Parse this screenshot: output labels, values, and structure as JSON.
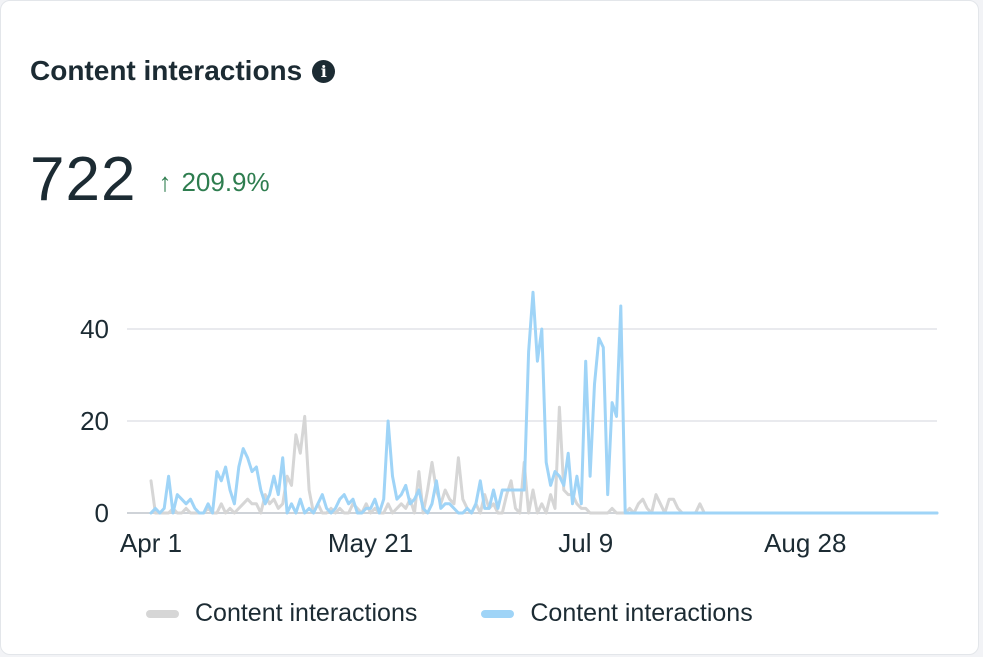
{
  "card": {
    "title": "Content interactions",
    "info_icon": "info-icon",
    "value": "722",
    "change": "209.9%",
    "change_direction": "up",
    "change_color": "#2e7d4f"
  },
  "chart_data": {
    "type": "line",
    "title": "",
    "xlabel": "",
    "ylabel": "",
    "x_start": "Apr 1",
    "x_ticks": [
      "Apr 1",
      "May 21",
      "Jul 9",
      "Aug 28"
    ],
    "x_tick_index": [
      0,
      50,
      99,
      149
    ],
    "x_count": 180,
    "ylim": [
      0,
      50
    ],
    "y_ticks": [
      0,
      20,
      40
    ],
    "grid": true,
    "legend_position": "bottom",
    "series": [
      {
        "name": "Content interactions",
        "color": "#d6d6d6",
        "values": [
          7,
          0,
          0,
          0,
          0,
          1,
          0,
          0,
          1,
          0,
          0,
          0,
          0,
          1,
          0,
          0,
          2,
          0,
          1,
          0,
          1,
          2,
          3,
          2,
          2,
          0,
          4,
          2,
          3,
          1,
          2,
          8,
          6,
          17,
          13,
          21,
          5,
          0,
          2,
          0,
          0,
          1,
          0,
          1,
          0,
          0,
          2,
          1,
          0,
          2,
          0,
          1,
          0,
          0,
          2,
          0,
          1,
          2,
          1,
          3,
          0,
          9,
          0,
          5,
          11,
          5,
          2,
          5,
          3,
          2,
          12,
          3,
          1,
          0,
          2,
          0,
          4,
          1,
          2,
          0,
          0,
          4,
          7,
          1,
          0,
          11,
          0,
          5,
          0,
          2,
          0,
          4,
          1,
          23,
          5,
          4,
          4,
          2,
          1,
          1,
          0,
          0,
          0,
          0,
          0,
          1,
          0,
          0,
          0,
          1,
          0,
          2,
          3,
          1,
          0,
          4,
          2,
          0,
          3,
          3,
          1,
          0,
          0,
          0,
          0,
          2,
          0,
          0,
          0,
          0,
          0,
          0,
          0,
          0,
          0,
          0,
          0,
          0,
          0,
          0,
          0,
          0,
          0,
          0,
          0,
          0,
          0,
          0,
          0,
          0,
          0,
          0,
          0,
          0,
          0,
          0,
          0,
          0,
          0,
          0,
          0,
          0,
          0,
          0,
          0,
          0,
          0,
          0,
          0,
          0,
          0,
          0,
          0,
          0,
          0,
          0,
          0,
          0,
          0,
          0
        ]
      },
      {
        "name": "Content interactions",
        "color": "#9fd4f7",
        "values": [
          0,
          1,
          0,
          1,
          8,
          0,
          4,
          3,
          2,
          3,
          1,
          0,
          0,
          2,
          0,
          9,
          7,
          10,
          5,
          2,
          10,
          14,
          12,
          9,
          10,
          5,
          2,
          4,
          8,
          4,
          12,
          0,
          2,
          0,
          3,
          0,
          1,
          0,
          2,
          4,
          1,
          0,
          1,
          3,
          4,
          2,
          3,
          0,
          0,
          1,
          1,
          3,
          0,
          3,
          20,
          8,
          3,
          4,
          6,
          2,
          3,
          5,
          1,
          0,
          2,
          7,
          1,
          2,
          2,
          1,
          0,
          0,
          1,
          0,
          2,
          7,
          1,
          1,
          5,
          1,
          5,
          5,
          5,
          5,
          5,
          5,
          35,
          48,
          33,
          40,
          11,
          6,
          9,
          8,
          6,
          13,
          2,
          8,
          2,
          33,
          8,
          28,
          38,
          36,
          4,
          24,
          21,
          45,
          0,
          0,
          0,
          0,
          0,
          0,
          0,
          0,
          0,
          0,
          0,
          0,
          0,
          0,
          0,
          0,
          0,
          0,
          0,
          0,
          0,
          0,
          0,
          0,
          0,
          0,
          0,
          0,
          0,
          0,
          0,
          0,
          0,
          0,
          0,
          0,
          0,
          0,
          0,
          0,
          0,
          0,
          0,
          0,
          0,
          0,
          0,
          0,
          0,
          0,
          0,
          0,
          0,
          0,
          0,
          0,
          0,
          0,
          0,
          0,
          0,
          0,
          0,
          0,
          0,
          0,
          0,
          0,
          0,
          0,
          0,
          0
        ]
      }
    ]
  }
}
